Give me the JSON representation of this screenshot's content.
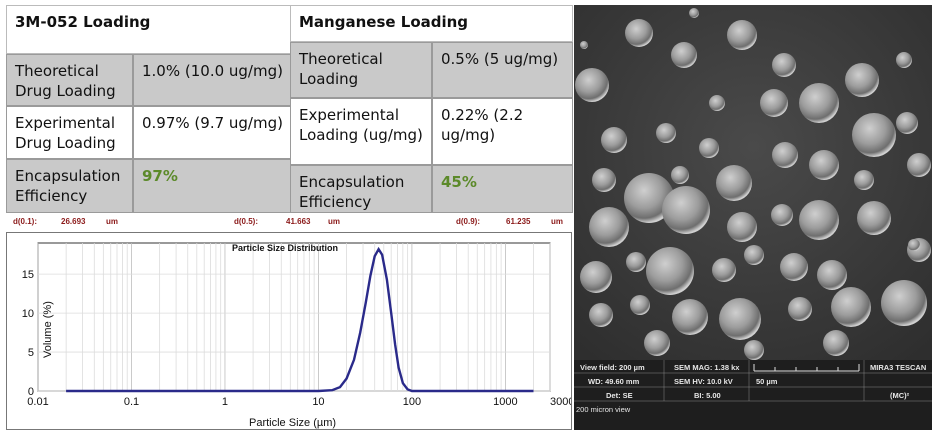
{
  "table_3m": {
    "title": "3M-052 Loading",
    "rows": [
      {
        "label": "Theoretical Drug Loading",
        "value": "1.0% (10.0 ug/mg)"
      },
      {
        "label": "Experimental Drug Loading",
        "value": "0.97% (9.7 ug/mg)"
      },
      {
        "label": "Encapsulation Efficiency",
        "value": "97%"
      }
    ]
  },
  "table_mn": {
    "title": "Manganese Loading",
    "rows": [
      {
        "label": "Theoretical Loading",
        "value": "0.5% (5 ug/mg)"
      },
      {
        "label": "Experimental Loading (ug/mg)",
        "value": "0.22% (2.2 ug/mg)"
      },
      {
        "label": "Encapsulation Efficiency",
        "value": "45%"
      }
    ]
  },
  "d_values": {
    "d01_label": "d(0.1):",
    "d01_value": "26.693",
    "d01_unit": "um",
    "d05_label": "d(0.5):",
    "d05_value": "41.663",
    "d05_unit": "um",
    "d09_label": "d(0.9):",
    "d09_value": "61.235",
    "d09_unit": "um"
  },
  "chart_data": {
    "type": "line",
    "title": "Particle Size Distribution",
    "xlabel": "Particle Size (µm)",
    "ylabel": "Volume (%)",
    "xscale": "log",
    "xlim": [
      0.01,
      3000
    ],
    "ylim": [
      0,
      19
    ],
    "xticks": [
      0.01,
      0.1,
      1,
      10,
      100,
      1000,
      3000
    ],
    "xtick_labels": [
      "0.01",
      "0.1",
      "1",
      "10",
      "100",
      "1000",
      "3000"
    ],
    "yticks": [
      0,
      5,
      10,
      15
    ],
    "grid": true,
    "series": [
      {
        "color": "#2a2a8a",
        "x": [
          0.02,
          1,
          10,
          14,
          17,
          20,
          24,
          28,
          32,
          36,
          40,
          44,
          48,
          54,
          60,
          66,
          72,
          80,
          90,
          100,
          2000
        ],
        "y": [
          0,
          0,
          0,
          0.1,
          0.5,
          1.6,
          4.0,
          7.5,
          11.3,
          14.8,
          17.3,
          18.2,
          17.5,
          14.3,
          10.0,
          6.0,
          3.0,
          1.0,
          0.2,
          0,
          0
        ]
      }
    ]
  },
  "sem_info": {
    "view_field": "View field: 200 µm",
    "sem_mag": "SEM MAG: 1.38 kx",
    "brand": "MIRA3 TESCAN",
    "wd": "WD: 49.60 mm",
    "sem_hv": "SEM HV: 10.0 kV",
    "scale": "50 µm",
    "det": "Det: SE",
    "bi": "BI: 5.00",
    "mc": "(MC)²",
    "caption": "200 micron view"
  }
}
